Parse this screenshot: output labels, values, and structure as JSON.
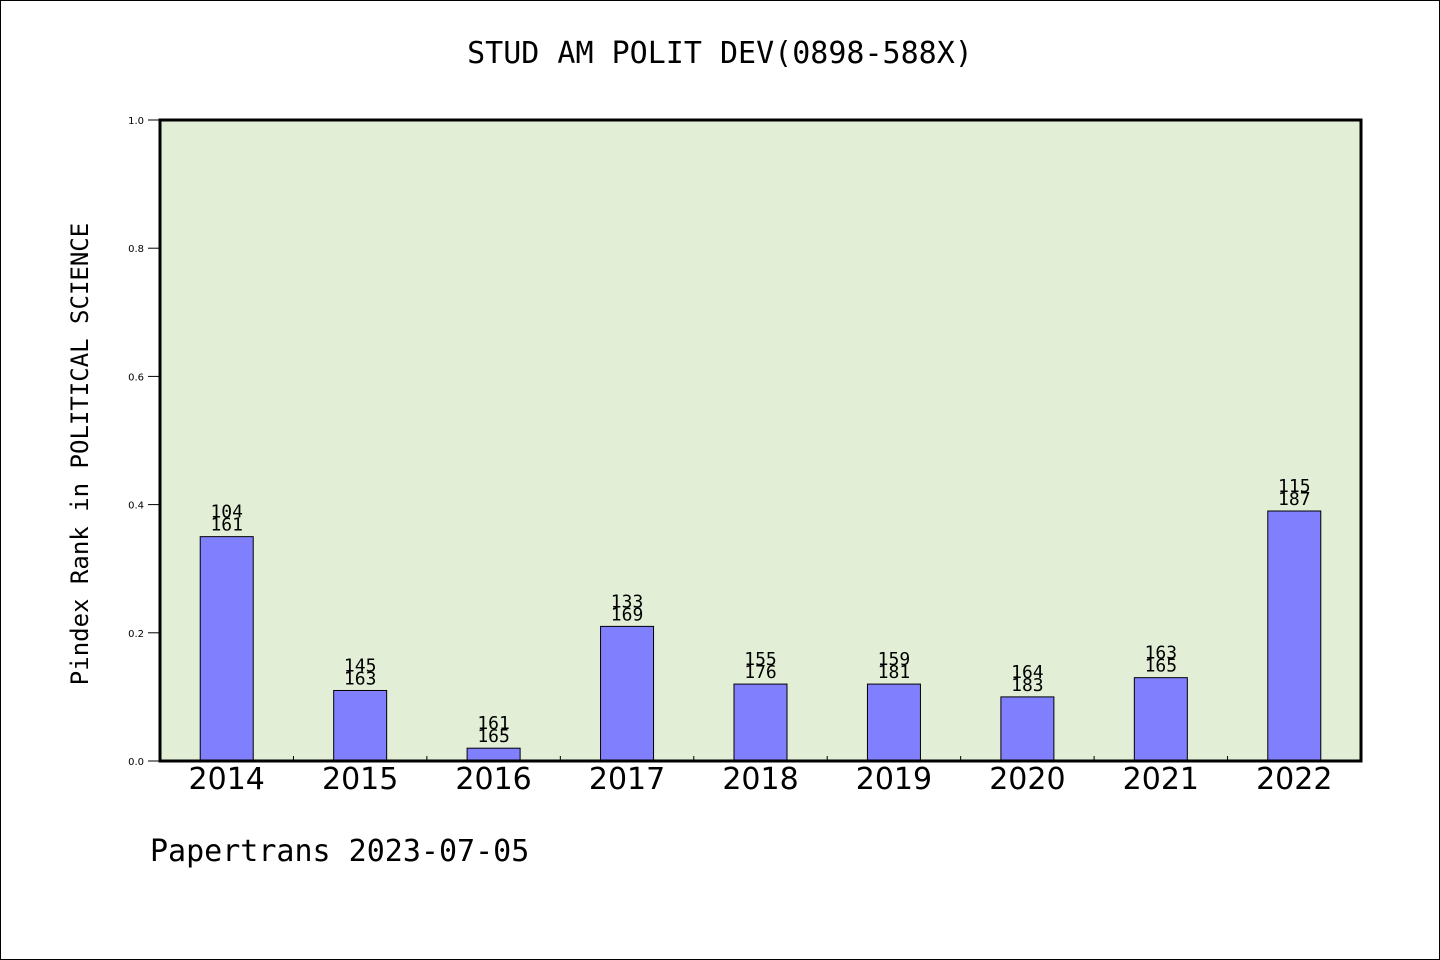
{
  "chart_data": {
    "type": "bar",
    "title": "STUD AM POLIT DEV(0898-588X)",
    "xlabel": "",
    "ylabel": "Pindex Rank in POLITICAL SCIENCE",
    "categories": [
      "2014",
      "2015",
      "2016",
      "2017",
      "2018",
      "2019",
      "2020",
      "2021",
      "2022"
    ],
    "values": [
      0.35,
      0.11,
      0.02,
      0.21,
      0.12,
      0.12,
      0.1,
      0.13,
      0.39
    ],
    "bar_labels": [
      [
        "104",
        "161"
      ],
      [
        "145",
        "163"
      ],
      [
        "161",
        "165"
      ],
      [
        "133",
        "169"
      ],
      [
        "155",
        "176"
      ],
      [
        "159",
        "181"
      ],
      [
        "164",
        "183"
      ],
      [
        "163",
        "165"
      ],
      [
        "115",
        "187"
      ]
    ],
    "ylim": [
      0,
      1.0
    ],
    "yticks": [
      "0.0",
      "0.2",
      "0.4",
      "0.6",
      "0.8",
      "1.0"
    ],
    "grid": false,
    "colors": {
      "plot_background": "#e2efd6",
      "bar_fill": "#8080ff",
      "bar_stroke": "#000000"
    }
  },
  "footer": "Papertrans 2023-07-05"
}
